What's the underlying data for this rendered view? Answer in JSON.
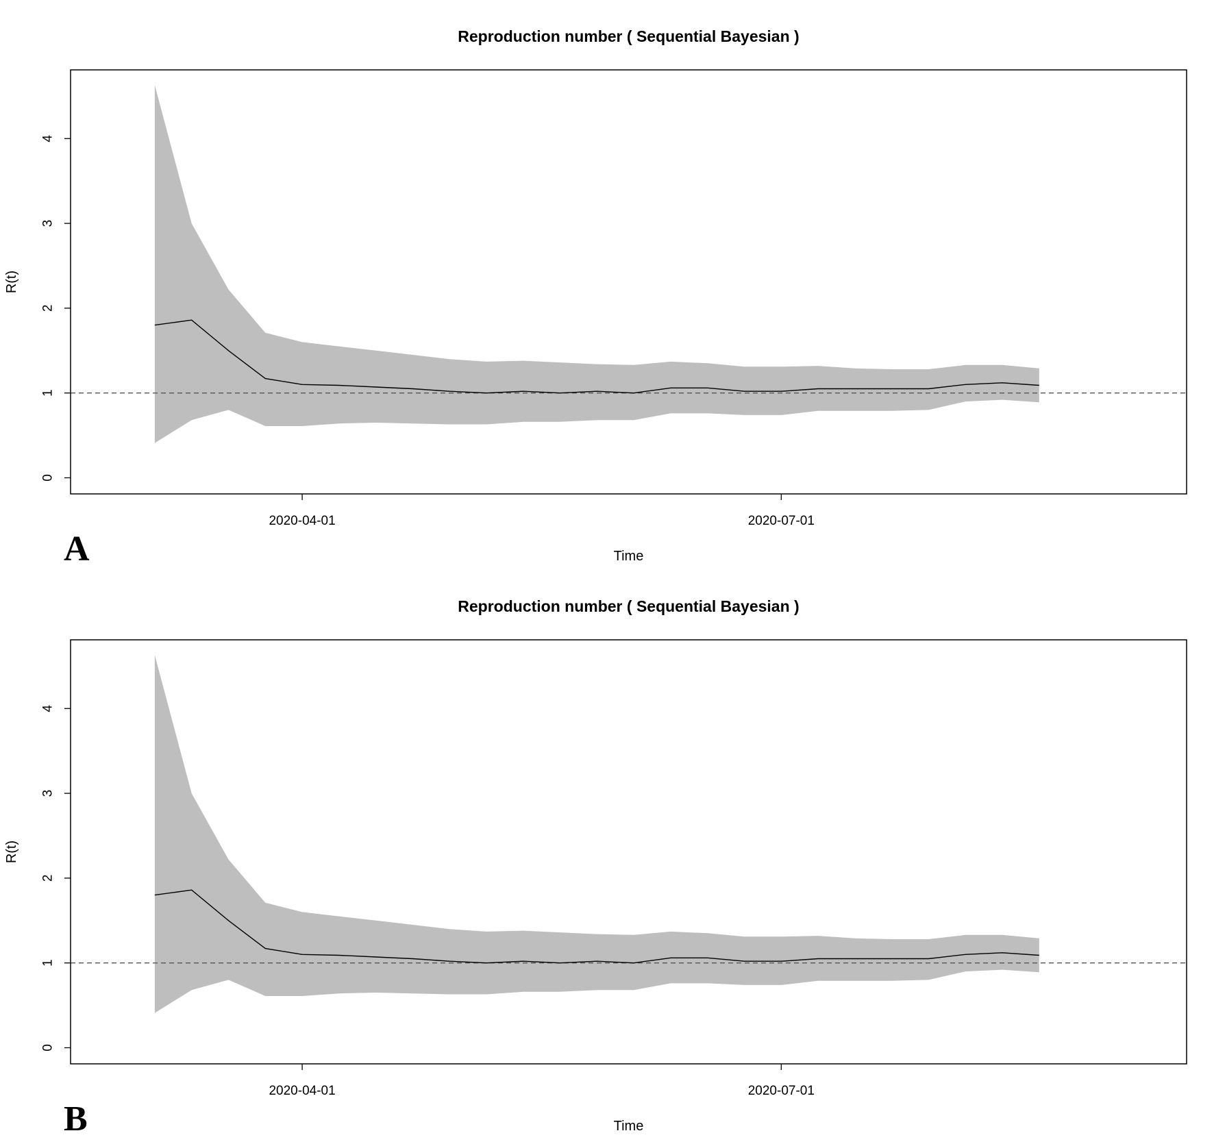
{
  "chart_data": [
    {
      "panel_label": "A",
      "type": "line",
      "title": "Reproduction number ( Sequential Bayesian )",
      "xlabel": "Time",
      "ylabel": "R(t)",
      "x_ticks": [
        "2020-04-01",
        "2020-07-01"
      ],
      "y_ticks": [
        0,
        1,
        2,
        3,
        4
      ],
      "xlim": [
        "2020-02-17",
        "2020-09-16"
      ],
      "ylim": [
        -0.19,
        4.81
      ],
      "reference_line": {
        "y": 1,
        "style": "dashed"
      },
      "band_color": "#bebebe",
      "line_color": "#000000",
      "series": [
        {
          "x": [
            "2020-03-04",
            "2020-03-11",
            "2020-03-18",
            "2020-03-25",
            "2020-04-01",
            "2020-04-08",
            "2020-04-15",
            "2020-04-22",
            "2020-04-29",
            "2020-05-06",
            "2020-05-13",
            "2020-05-20",
            "2020-05-27",
            "2020-06-03",
            "2020-06-10",
            "2020-06-17",
            "2020-06-24",
            "2020-07-01",
            "2020-07-08",
            "2020-07-15",
            "2020-07-22",
            "2020-07-29",
            "2020-08-05",
            "2020-08-12",
            "2020-08-19"
          ],
          "values": [
            1.8,
            1.86,
            1.5,
            1.17,
            1.1,
            1.09,
            1.07,
            1.05,
            1.02,
            1.0,
            1.02,
            1.0,
            1.02,
            1.0,
            1.06,
            1.06,
            1.02,
            1.02,
            1.05,
            1.05,
            1.05,
            1.05,
            1.1,
            1.12,
            1.09
          ],
          "lower": [
            0.41,
            0.68,
            0.8,
            0.61,
            0.61,
            0.64,
            0.65,
            0.64,
            0.63,
            0.63,
            0.66,
            0.66,
            0.68,
            0.68,
            0.76,
            0.76,
            0.74,
            0.74,
            0.79,
            0.79,
            0.79,
            0.8,
            0.9,
            0.92,
            0.89
          ],
          "upper": [
            4.63,
            3.0,
            2.22,
            1.71,
            1.6,
            1.55,
            1.5,
            1.45,
            1.4,
            1.37,
            1.38,
            1.36,
            1.34,
            1.33,
            1.37,
            1.35,
            1.31,
            1.31,
            1.32,
            1.29,
            1.28,
            1.28,
            1.33,
            1.33,
            1.29
          ]
        }
      ]
    },
    {
      "panel_label": "B",
      "type": "line",
      "title": "Reproduction number ( Sequential Bayesian )",
      "xlabel": "Time",
      "ylabel": "R(t)",
      "x_ticks": [
        "2020-04-01",
        "2020-07-01"
      ],
      "y_ticks": [
        0,
        1,
        2,
        3,
        4
      ],
      "xlim": [
        "2020-02-17",
        "2020-09-16"
      ],
      "ylim": [
        -0.19,
        4.81
      ],
      "reference_line": {
        "y": 1,
        "style": "dashed"
      },
      "band_color": "#bebebe",
      "line_color": "#000000",
      "series": [
        {
          "x": [
            "2020-03-04",
            "2020-03-11",
            "2020-03-18",
            "2020-03-25",
            "2020-04-01",
            "2020-04-08",
            "2020-04-15",
            "2020-04-22",
            "2020-04-29",
            "2020-05-06",
            "2020-05-13",
            "2020-05-20",
            "2020-05-27",
            "2020-06-03",
            "2020-06-10",
            "2020-06-17",
            "2020-06-24",
            "2020-07-01",
            "2020-07-08",
            "2020-07-15",
            "2020-07-22",
            "2020-07-29",
            "2020-08-05",
            "2020-08-12",
            "2020-08-19"
          ],
          "values": [
            1.8,
            1.86,
            1.5,
            1.17,
            1.1,
            1.09,
            1.07,
            1.05,
            1.02,
            1.0,
            1.02,
            1.0,
            1.02,
            1.0,
            1.06,
            1.06,
            1.02,
            1.02,
            1.05,
            1.05,
            1.05,
            1.05,
            1.1,
            1.12,
            1.09
          ],
          "lower": [
            0.41,
            0.68,
            0.8,
            0.61,
            0.61,
            0.64,
            0.65,
            0.64,
            0.63,
            0.63,
            0.66,
            0.66,
            0.68,
            0.68,
            0.76,
            0.76,
            0.74,
            0.74,
            0.79,
            0.79,
            0.79,
            0.8,
            0.9,
            0.92,
            0.89
          ],
          "upper": [
            4.63,
            3.0,
            2.22,
            1.71,
            1.6,
            1.55,
            1.5,
            1.45,
            1.4,
            1.37,
            1.38,
            1.36,
            1.34,
            1.33,
            1.37,
            1.35,
            1.31,
            1.31,
            1.32,
            1.29,
            1.28,
            1.28,
            1.33,
            1.33,
            1.29
          ]
        }
      ]
    }
  ]
}
